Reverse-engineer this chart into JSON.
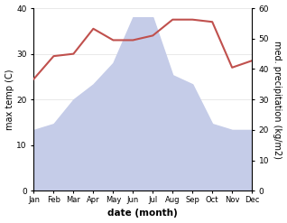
{
  "months": [
    "Jan",
    "Feb",
    "Mar",
    "Apr",
    "May",
    "Jun",
    "Jul",
    "Aug",
    "Sep",
    "Oct",
    "Nov",
    "Dec"
  ],
  "x": [
    0,
    1,
    2,
    3,
    4,
    5,
    6,
    7,
    8,
    9,
    10,
    11
  ],
  "temperature": [
    24.5,
    29.5,
    30.0,
    35.5,
    33.0,
    33.0,
    34.0,
    37.5,
    37.5,
    37.0,
    27.0,
    28.5
  ],
  "precipitation_kg": [
    20,
    22,
    30,
    35,
    42,
    57,
    57,
    38,
    35,
    22,
    20,
    20
  ],
  "temp_color": "#c0504d",
  "precip_fill_color": "#c5cce8",
  "ylabel_left": "max temp (C)",
  "ylabel_right": "med. precipitation (kg/m2)",
  "xlabel": "date (month)",
  "ylim_left": [
    0,
    40
  ],
  "ylim_right": [
    0,
    60
  ],
  "yticks_left": [
    0,
    10,
    20,
    30,
    40
  ],
  "yticks_right": [
    0,
    10,
    20,
    30,
    40,
    50,
    60
  ],
  "bg_color": "#ffffff",
  "grid_color": "#e0e0e0"
}
